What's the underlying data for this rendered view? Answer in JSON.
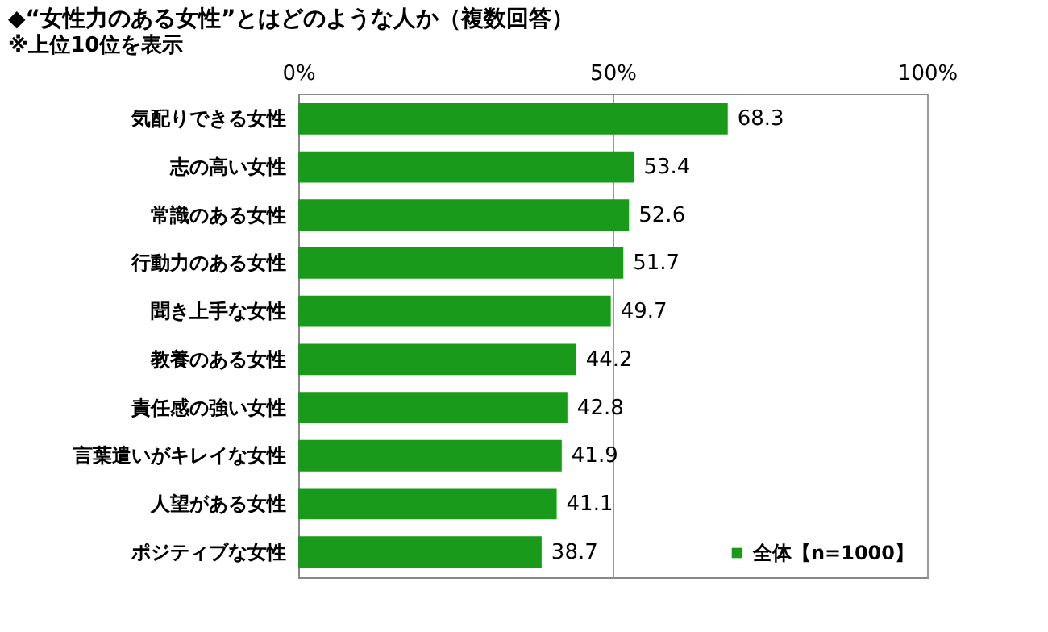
{
  "chart_data": {
    "type": "bar",
    "orientation": "horizontal",
    "title": "◆“女性力のある女性”とはどのような人か（複数回答）",
    "subtitle": "※上位10位を表示",
    "categories": [
      "気配りできる女性",
      "志の高い女性",
      "常識のある女性",
      "行動力のある女性",
      "聞き上手な女性",
      "教養のある女性",
      "責任感の強い女性",
      "言葉遣いがキレイな女性",
      "人望がある女性",
      "ポジティブな女性"
    ],
    "series": [
      {
        "name": "全体【n=1000】",
        "color": "#1a9a1a",
        "values": [
          68.3,
          53.4,
          52.6,
          51.7,
          49.7,
          44.2,
          42.8,
          41.9,
          41.1,
          38.7
        ]
      }
    ],
    "xlim": [
      0,
      100
    ],
    "xticks": [
      {
        "value": 0,
        "label": "0%"
      },
      {
        "value": 50,
        "label": "50%"
      },
      {
        "value": 100,
        "label": "100%"
      }
    ],
    "data_labels": true,
    "grid": "x",
    "legend": "bottom right"
  }
}
